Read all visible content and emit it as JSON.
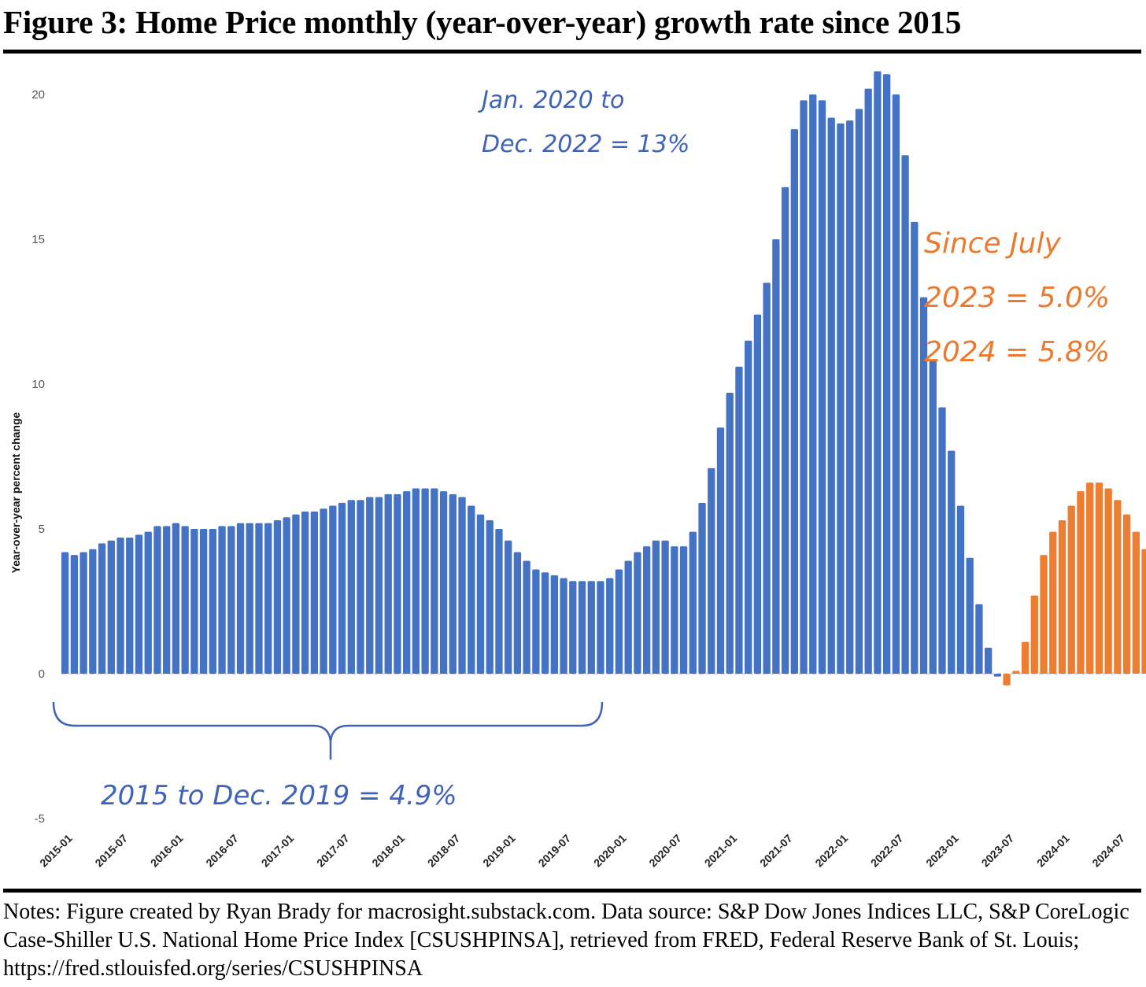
{
  "title": "Figure 3: Home Price monthly (year-over-year) growth rate since 2015",
  "notes": "Notes: Figure created by Ryan Brady for macrosight.substack.com. Data source: S&P Dow Jones Indices LLC, S&P CoreLogic Case-Shiller U.S. National Home Price Index [CSUSHPINSA], retrieved from FRED, Federal Reserve Bank of St. Louis; https://fred.stlouisfed.org/series/CSUSHPINSA",
  "chart_data": {
    "type": "bar",
    "ylabel": "Year-over-year percent change",
    "xlabel": "",
    "ylim": [
      -5,
      21
    ],
    "yticks": [
      20,
      15,
      10,
      5,
      0,
      -5
    ],
    "x_tick_labels": [
      "2015-01",
      "2015-07",
      "2016-01",
      "2016-07",
      "2017-01",
      "2017-07",
      "2018-01",
      "2018-07",
      "2019-01",
      "2019-07",
      "2020-01",
      "2020-07",
      "2021-01",
      "2021-07",
      "2022-01",
      "2022-07",
      "2023-01",
      "2023-07",
      "2024-01",
      "2024-07"
    ],
    "start_month": "2015-01",
    "colors": {
      "before_2023_07": "#4472c4",
      "from_2023_07": "#ed7d31"
    },
    "color_change_month": "2023-07",
    "values": [
      4.2,
      4.1,
      4.2,
      4.3,
      4.5,
      4.6,
      4.7,
      4.7,
      4.8,
      4.9,
      5.1,
      5.1,
      5.2,
      5.1,
      5.0,
      5.0,
      5.0,
      5.1,
      5.1,
      5.2,
      5.2,
      5.2,
      5.2,
      5.3,
      5.4,
      5.5,
      5.6,
      5.6,
      5.7,
      5.8,
      5.9,
      6.0,
      6.0,
      6.1,
      6.1,
      6.2,
      6.2,
      6.3,
      6.4,
      6.4,
      6.4,
      6.3,
      6.2,
      6.1,
      5.8,
      5.5,
      5.3,
      5.0,
      4.6,
      4.2,
      3.9,
      3.6,
      3.5,
      3.4,
      3.3,
      3.2,
      3.2,
      3.2,
      3.2,
      3.3,
      3.6,
      3.9,
      4.2,
      4.4,
      4.6,
      4.6,
      4.4,
      4.4,
      4.9,
      5.9,
      7.1,
      8.5,
      9.7,
      10.6,
      11.5,
      12.4,
      13.5,
      15.0,
      16.8,
      18.8,
      19.8,
      20.0,
      19.8,
      19.2,
      19.0,
      19.1,
      19.5,
      20.2,
      20.8,
      20.7,
      20.0,
      17.9,
      15.6,
      13.0,
      10.8,
      9.2,
      7.7,
      5.8,
      4.0,
      2.4,
      0.9,
      -0.1,
      -0.4,
      0.1,
      1.1,
      2.7,
      4.1,
      4.9,
      5.3,
      5.8,
      6.3,
      6.6,
      6.6,
      6.4,
      6.0,
      5.5,
      4.9,
      4.3
    ],
    "annotations": {
      "period_2020_2022_line1": "Jan. 2020 to",
      "period_2020_2022_line2": "Dec. 2022 = 13%",
      "period_2015_2019": "2015 to Dec. 2019 = 4.9%",
      "since_july_line1": "Since July",
      "since_july_line2": "2023 = 5.0%",
      "since_july_line3": "2024 = 5.8%"
    }
  }
}
